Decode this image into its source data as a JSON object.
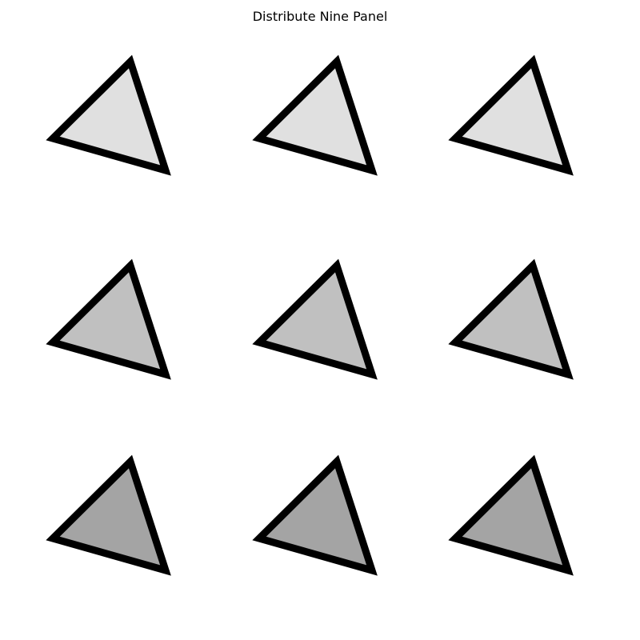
{
  "title": "Distribute Nine Panel",
  "panels": [
    {
      "row": 1,
      "col": 1,
      "fill": "#e0e0e0"
    },
    {
      "row": 1,
      "col": 2,
      "fill": "#e0e0e0"
    },
    {
      "row": 1,
      "col": 3,
      "fill": "#e0e0e0"
    },
    {
      "row": 2,
      "col": 1,
      "fill": "#c0c0c0"
    },
    {
      "row": 2,
      "col": 2,
      "fill": "#c0c0c0"
    },
    {
      "row": 2,
      "col": 3,
      "fill": "#c0c0c0"
    },
    {
      "row": 3,
      "col": 1,
      "fill": "#a4a4a4"
    },
    {
      "row": 3,
      "col": 2,
      "fill": "#a4a4a4"
    },
    {
      "row": 3,
      "col": 3,
      "fill": "#a4a4a4"
    }
  ],
  "colors": {
    "outline": "#000000",
    "background": "#ffffff"
  }
}
